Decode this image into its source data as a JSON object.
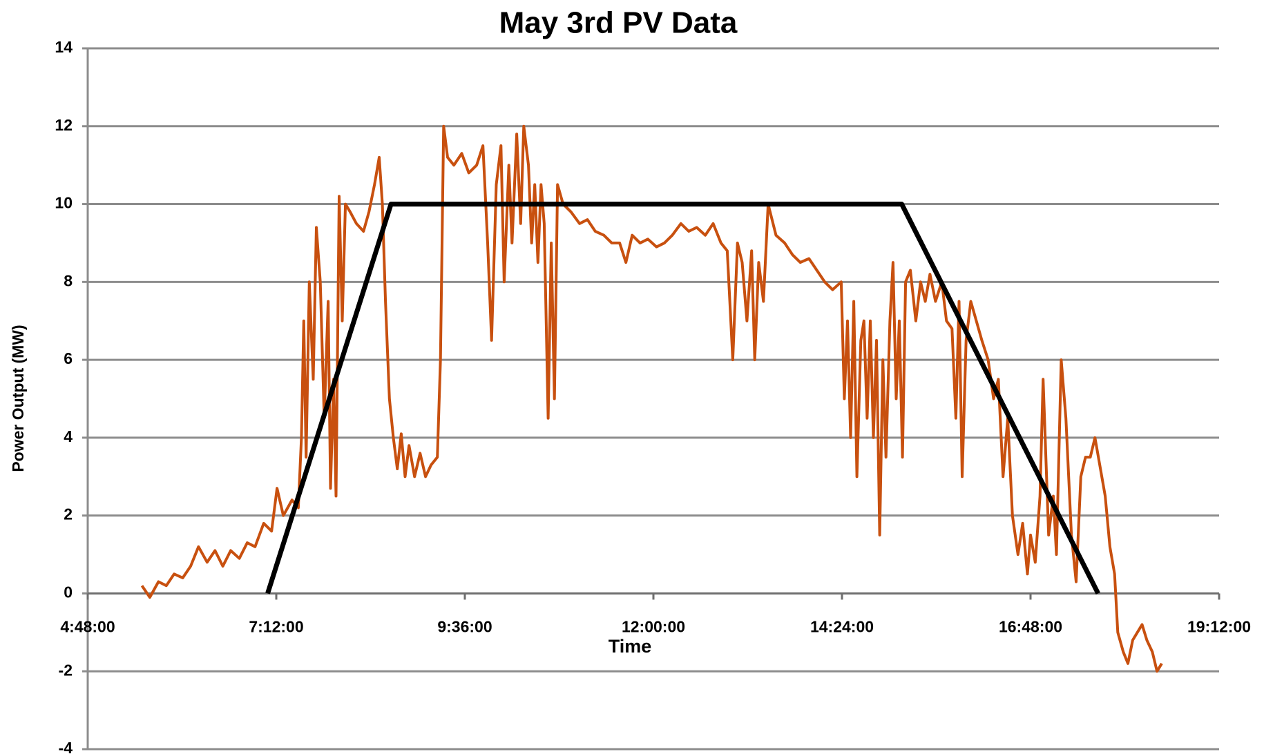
{
  "chart_data": {
    "type": "line",
    "title": "May 3rd PV Data",
    "x_label": "Time",
    "y_label": "Power Output (MW)",
    "xlim": [
      4.8,
      19.2
    ],
    "xticks": [
      {
        "value": 4.8,
        "label": "4:48:00"
      },
      {
        "value": 7.2,
        "label": "7:12:00"
      },
      {
        "value": 9.6,
        "label": "9:36:00"
      },
      {
        "value": 12,
        "label": "12:00:00"
      },
      {
        "value": 14.4,
        "label": "14:24:00"
      },
      {
        "value": 16.8,
        "label": "16:48:00"
      },
      {
        "value": 19.2,
        "label": "19:12:00"
      }
    ],
    "ylim": [
      -4,
      14
    ],
    "yticks": [
      -4,
      -2,
      0,
      2,
      4,
      6,
      8,
      10,
      12,
      14
    ],
    "grid": true,
    "series": [
      {
        "color": "#c8500f",
        "x": [
          5.49,
          5.59,
          5.7,
          5.8,
          5.9,
          6.01,
          6.11,
          6.21,
          6.32,
          6.42,
          6.52,
          6.62,
          6.73,
          6.83,
          6.93,
          7.04,
          7.14,
          7.21,
          7.29,
          7.4,
          7.48,
          7.52,
          7.55,
          7.58,
          7.62,
          7.67,
          7.71,
          7.76,
          7.81,
          7.86,
          7.89,
          7.93,
          7.96,
          8.0,
          8.04,
          8.08,
          8.14,
          8.22,
          8.31,
          8.38,
          8.45,
          8.51,
          8.55,
          8.59,
          8.64,
          8.69,
          8.74,
          8.79,
          8.84,
          8.89,
          8.96,
          9.03,
          9.1,
          9.17,
          9.25,
          9.29,
          9.33,
          9.38,
          9.46,
          9.56,
          9.65,
          9.75,
          9.83,
          9.89,
          9.94,
          10.0,
          10.06,
          10.1,
          10.16,
          10.2,
          10.26,
          10.31,
          10.35,
          10.41,
          10.45,
          10.49,
          10.53,
          10.57,
          10.61,
          10.66,
          10.7,
          10.74,
          10.78,
          10.85,
          10.95,
          11.06,
          11.16,
          11.26,
          11.37,
          11.47,
          11.57,
          11.65,
          11.73,
          11.83,
          11.93,
          12.04,
          12.14,
          12.24,
          12.35,
          12.45,
          12.55,
          12.66,
          12.76,
          12.86,
          12.94,
          13.01,
          13.07,
          13.13,
          13.19,
          13.25,
          13.29,
          13.34,
          13.4,
          13.46,
          13.56,
          13.67,
          13.77,
          13.87,
          13.98,
          14.08,
          14.18,
          14.28,
          14.39,
          14.43,
          14.47,
          14.51,
          14.55,
          14.59,
          14.64,
          14.68,
          14.72,
          14.76,
          14.8,
          14.84,
          14.88,
          14.92,
          14.96,
          15.01,
          15.05,
          15.09,
          15.13,
          15.17,
          15.21,
          15.27,
          15.34,
          15.4,
          15.46,
          15.52,
          15.59,
          15.67,
          15.73,
          15.8,
          15.85,
          15.89,
          15.93,
          15.98,
          16.04,
          16.11,
          16.18,
          16.26,
          16.33,
          16.39,
          16.45,
          16.51,
          16.57,
          16.64,
          16.7,
          16.76,
          16.8,
          16.86,
          16.92,
          16.96,
          17.03,
          17.09,
          17.13,
          17.19,
          17.25,
          17.32,
          17.38,
          17.44,
          17.5,
          17.56,
          17.62,
          17.69,
          17.75,
          17.81,
          17.87,
          17.91,
          17.98,
          18.04,
          18.1,
          18.16,
          18.22,
          18.28,
          18.35,
          18.41,
          18.47
        ],
        "values": [
          0.2,
          -0.1,
          0.3,
          0.2,
          0.5,
          0.4,
          0.7,
          1.2,
          0.8,
          1.1,
          0.7,
          1.1,
          0.9,
          1.3,
          1.2,
          1.8,
          1.6,
          2.7,
          2.0,
          2.4,
          2.2,
          4.0,
          7.0,
          3.5,
          8.0,
          5.5,
          9.4,
          8.0,
          4.5,
          7.5,
          2.7,
          5.5,
          2.5,
          10.2,
          7.0,
          10.0,
          9.8,
          9.5,
          9.3,
          9.8,
          10.5,
          11.2,
          10.0,
          7.5,
          5.0,
          4.0,
          3.2,
          4.1,
          3.0,
          3.8,
          3.0,
          3.6,
          3.0,
          3.3,
          3.5,
          6.0,
          12.0,
          11.2,
          11.0,
          11.3,
          10.8,
          11.0,
          11.5,
          9.0,
          6.5,
          10.5,
          11.5,
          8.0,
          11.0,
          9.0,
          11.8,
          9.5,
          12.0,
          11.0,
          9.0,
          10.5,
          8.5,
          10.5,
          9.5,
          4.5,
          9.0,
          5.0,
          10.5,
          10.0,
          9.8,
          9.5,
          9.6,
          9.3,
          9.2,
          9.0,
          9.0,
          8.5,
          9.2,
          9.0,
          9.1,
          8.9,
          9.0,
          9.2,
          9.5,
          9.3,
          9.4,
          9.2,
          9.5,
          9.0,
          8.8,
          6.0,
          9.0,
          8.5,
          7.0,
          8.8,
          6.0,
          8.5,
          7.5,
          10.0,
          9.2,
          9.0,
          8.7,
          8.5,
          8.6,
          8.3,
          8.0,
          7.8,
          8.0,
          5.0,
          7.0,
          4.0,
          7.5,
          3.0,
          6.5,
          7.0,
          4.5,
          7.0,
          4.0,
          6.5,
          1.5,
          6.0,
          3.5,
          7.0,
          8.5,
          5.0,
          7.0,
          3.5,
          8.0,
          8.3,
          7.0,
          8.0,
          7.5,
          8.2,
          7.5,
          8.0,
          7.0,
          6.8,
          4.5,
          7.5,
          3.0,
          6.5,
          7.5,
          7.0,
          6.5,
          6.0,
          5.0,
          5.5,
          3.0,
          4.5,
          2.0,
          1.0,
          1.8,
          0.5,
          1.5,
          0.8,
          2.5,
          5.5,
          1.5,
          2.5,
          1.0,
          6.0,
          4.5,
          1.5,
          0.3,
          3.0,
          3.5,
          3.5,
          4.0,
          3.2,
          2.5,
          1.2,
          0.5,
          -1.0,
          -1.5,
          -1.8,
          -1.2,
          -1.0,
          -0.8,
          -1.2,
          -1.5,
          -2.0,
          -1.8
        ]
      },
      {
        "color": "#000000",
        "x": [
          7.09,
          8.66,
          15.16,
          17.66
        ],
        "values": [
          0,
          10,
          10,
          0
        ]
      }
    ]
  }
}
